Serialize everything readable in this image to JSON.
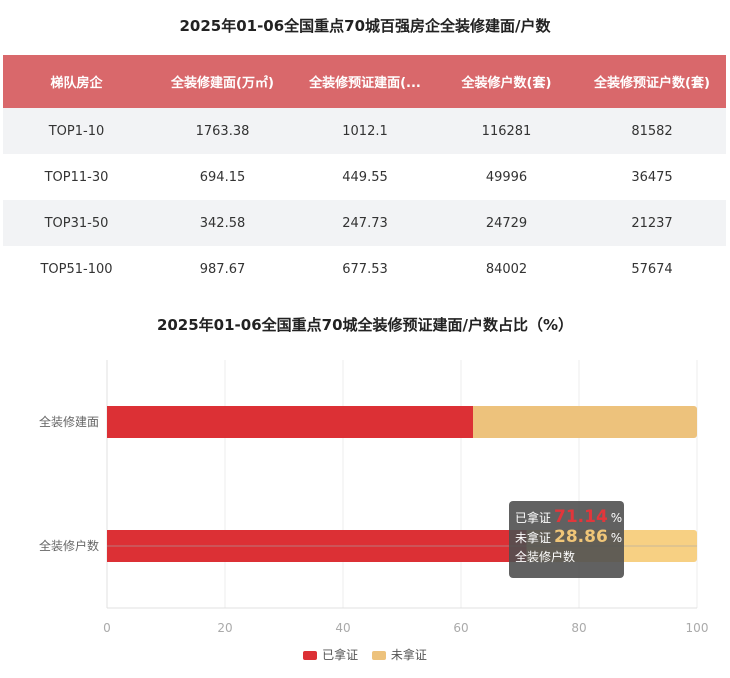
{
  "table_title": "2025年01-06全国重点70城百强房企全装修建面/户数",
  "table": {
    "headers": [
      "梯队房企",
      "全装修建面(万㎡)",
      "全装修预证建面(...",
      "全装修户数(套)",
      "全装修预证户数(套)"
    ],
    "rows": [
      [
        "TOP1-10",
        "1763.38",
        "1012.1",
        "116281",
        "81582"
      ],
      [
        "TOP11-30",
        "694.15",
        "449.55",
        "49996",
        "36475"
      ],
      [
        "TOP31-50",
        "342.58",
        "247.73",
        "24729",
        "21237"
      ],
      [
        "TOP51-100",
        "987.67",
        "677.53",
        "84002",
        "57674"
      ]
    ]
  },
  "chart_data": {
    "type": "bar",
    "orientation": "horizontal",
    "stacked": true,
    "title": "2025年01-06全国重点70城全装修预证建面/户数占比（%）",
    "categories": [
      "全装修建面",
      "全装修户数"
    ],
    "series": [
      {
        "name": "已拿证",
        "values": [
          62.04,
          71.14
        ],
        "color": "#dc3035"
      },
      {
        "name": "未拿证",
        "values": [
          37.96,
          28.86
        ],
        "color": "#edc27c"
      }
    ],
    "xlim": [
      0,
      100
    ],
    "xticks": [
      "0",
      "20",
      "40",
      "60",
      "80",
      "100"
    ],
    "legend_position": "bottom"
  },
  "tooltip": {
    "row1_label": "已拿证",
    "row1_value": "71.14",
    "row2_label": "未拿证",
    "row2_value": "28.86",
    "unit": "%",
    "category": "全装修户数",
    "row1_color": "#e2363b",
    "row2_color": "#f0c678"
  },
  "highlight_color": "#f7d083"
}
